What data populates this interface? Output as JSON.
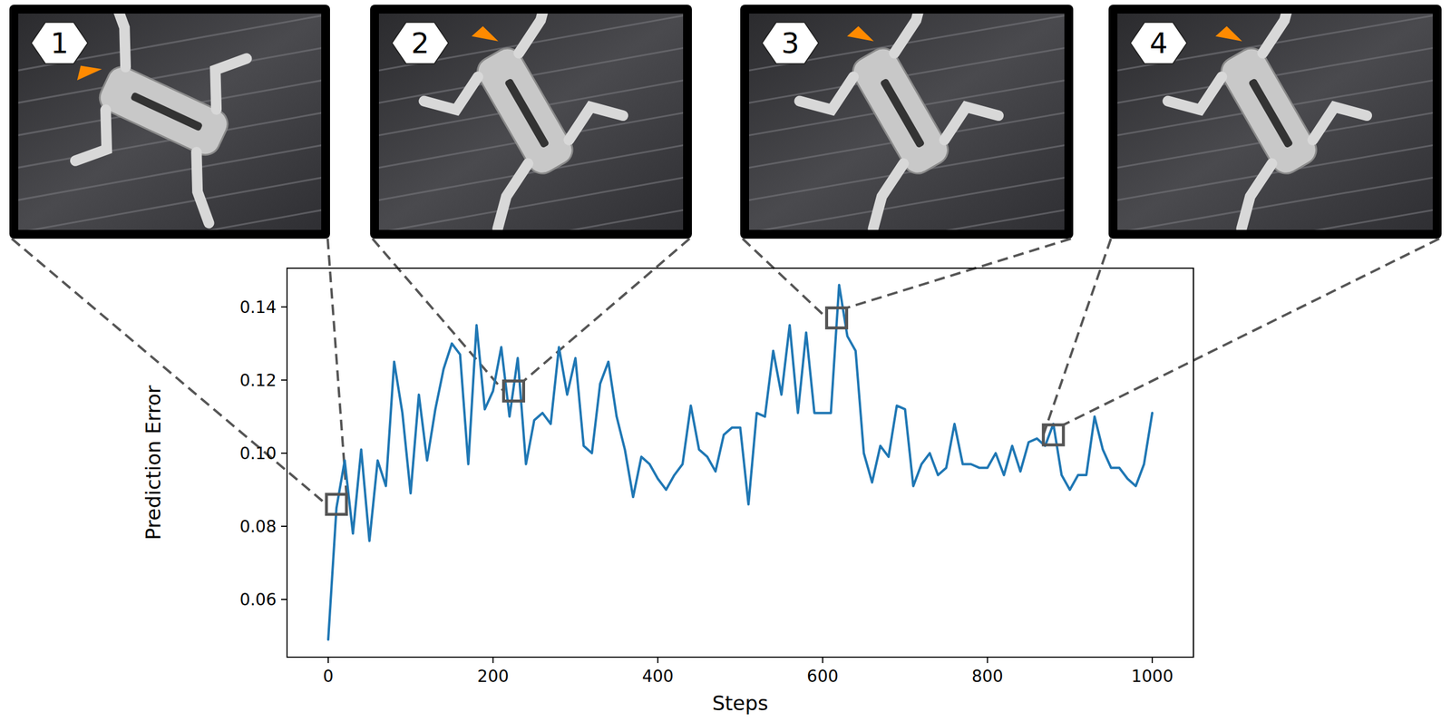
{
  "chart_data": {
    "type": "line",
    "x_label": "Steps",
    "y_label": "Prediction Error",
    "xlim": [
      -50,
      1050
    ],
    "ylim": [
      0.0442,
      0.1506
    ],
    "xticks": [
      0,
      200,
      400,
      600,
      800,
      1000
    ],
    "yticks": [
      0.06,
      0.08,
      {
        "value": 0.1,
        "label": "0.10"
      },
      0.12,
      0.14
    ],
    "grid": false,
    "series": [
      {
        "name": "Prediction Error",
        "color": "#1f77b4",
        "x": [
          0,
          10,
          20,
          30,
          40,
          50,
          60,
          70,
          80,
          90,
          100,
          110,
          120,
          130,
          140,
          150,
          160,
          170,
          180,
          190,
          200,
          210,
          220,
          230,
          240,
          250,
          260,
          270,
          280,
          290,
          300,
          310,
          320,
          330,
          340,
          350,
          360,
          370,
          380,
          390,
          400,
          410,
          420,
          430,
          440,
          450,
          460,
          470,
          480,
          490,
          500,
          510,
          520,
          530,
          540,
          550,
          560,
          570,
          580,
          590,
          600,
          610,
          620,
          630,
          640,
          650,
          660,
          670,
          680,
          690,
          700,
          710,
          720,
          730,
          740,
          750,
          760,
          770,
          780,
          790,
          800,
          810,
          820,
          830,
          840,
          850,
          860,
          870,
          880,
          890,
          900,
          910,
          920,
          930,
          940,
          950,
          960,
          970,
          980,
          990,
          1000
        ],
        "values": [
          0.049,
          0.085,
          0.098,
          0.078,
          0.101,
          0.076,
          0.098,
          0.091,
          0.125,
          0.111,
          0.089,
          0.116,
          0.098,
          0.112,
          0.123,
          0.13,
          0.127,
          0.097,
          0.135,
          0.112,
          0.117,
          0.129,
          0.11,
          0.126,
          0.097,
          0.109,
          0.111,
          0.108,
          0.129,
          0.116,
          0.126,
          0.102,
          0.1,
          0.119,
          0.125,
          0.11,
          0.101,
          0.088,
          0.099,
          0.097,
          0.093,
          0.09,
          0.094,
          0.097,
          0.113,
          0.101,
          0.099,
          0.095,
          0.105,
          0.107,
          0.107,
          0.086,
          0.111,
          0.11,
          0.128,
          0.116,
          0.135,
          0.111,
          0.133,
          0.111,
          0.111,
          0.111,
          0.146,
          0.132,
          0.128,
          0.1,
          0.092,
          0.102,
          0.099,
          0.113,
          0.112,
          0.091,
          0.097,
          0.1,
          0.094,
          0.096,
          0.108,
          0.097,
          0.097,
          0.096,
          0.096,
          0.1,
          0.094,
          0.102,
          0.095,
          0.103,
          0.104,
          0.102,
          0.108,
          0.094,
          0.09,
          0.094,
          0.094,
          0.11,
          0.101,
          0.096,
          0.096,
          0.093,
          0.091,
          0.097,
          0.111
        ]
      }
    ],
    "annotations": [
      {
        "label": "1",
        "x": 10,
        "y": 0.086
      },
      {
        "label": "2",
        "x": 225,
        "y": 0.117
      },
      {
        "label": "3",
        "x": 617,
        "y": 0.137
      },
      {
        "label": "4",
        "x": 880,
        "y": 0.105
      }
    ]
  }
}
